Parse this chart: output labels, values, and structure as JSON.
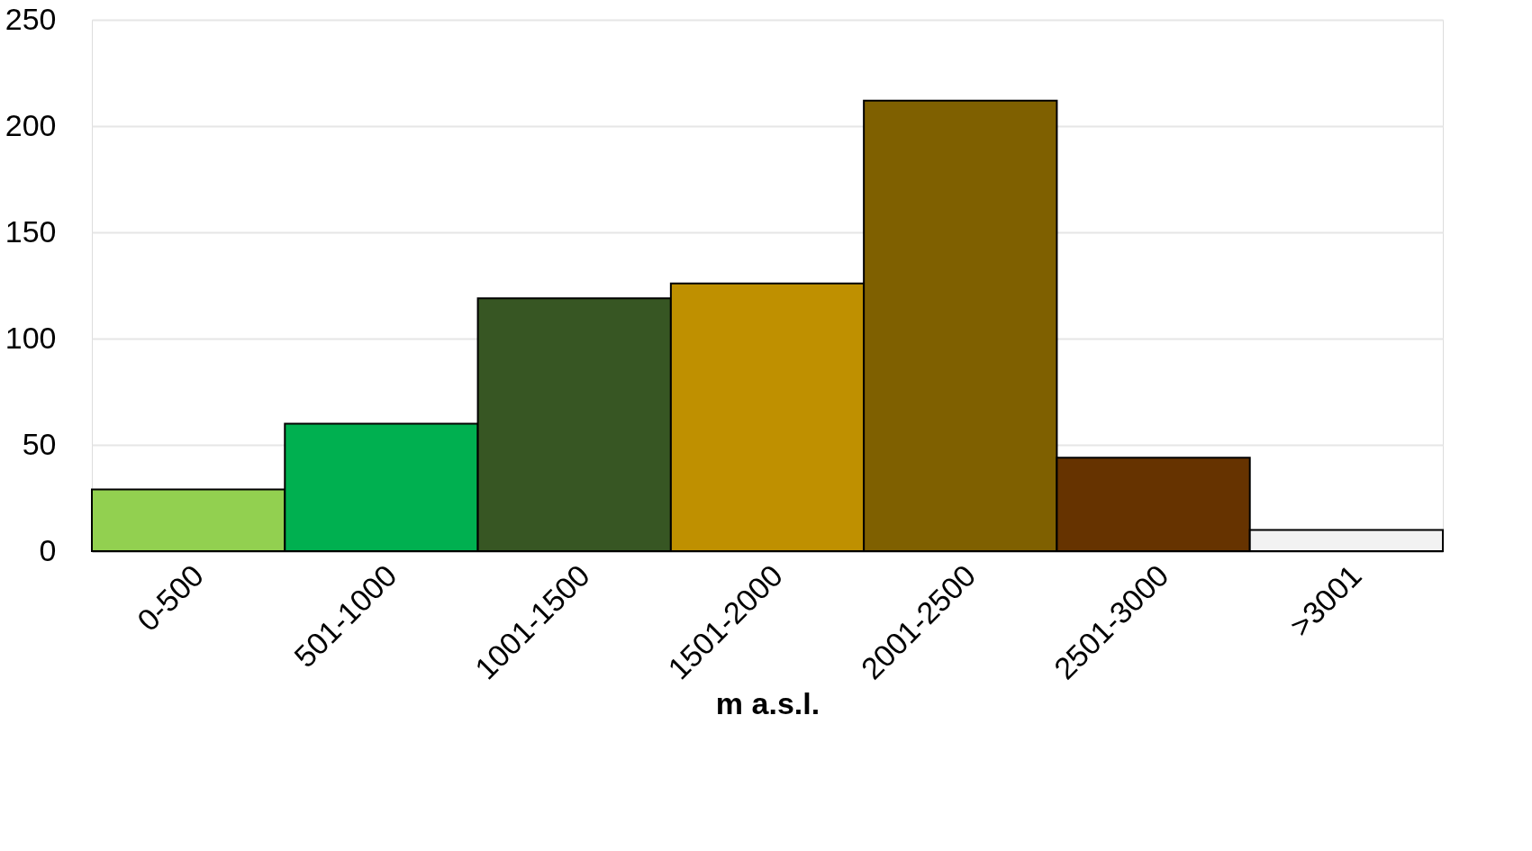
{
  "chart_data": {
    "type": "bar",
    "xlabel": "m a.s.l.",
    "categories": [
      "0-500",
      "501-1000",
      "1001-1500",
      "1501-2000",
      "2001-2500",
      "2501-3000",
      ">3001"
    ],
    "values": [
      29,
      60,
      119,
      126,
      212,
      44,
      10
    ],
    "colors": [
      "#92d050",
      "#00b050",
      "#375623",
      "#bf9000",
      "#7f6000",
      "#663300",
      "#f2f2f2"
    ],
    "ylim": [
      0,
      250
    ],
    "yticks": [
      0,
      50,
      100,
      150,
      200,
      250
    ],
    "grid": "y",
    "legend": false
  }
}
